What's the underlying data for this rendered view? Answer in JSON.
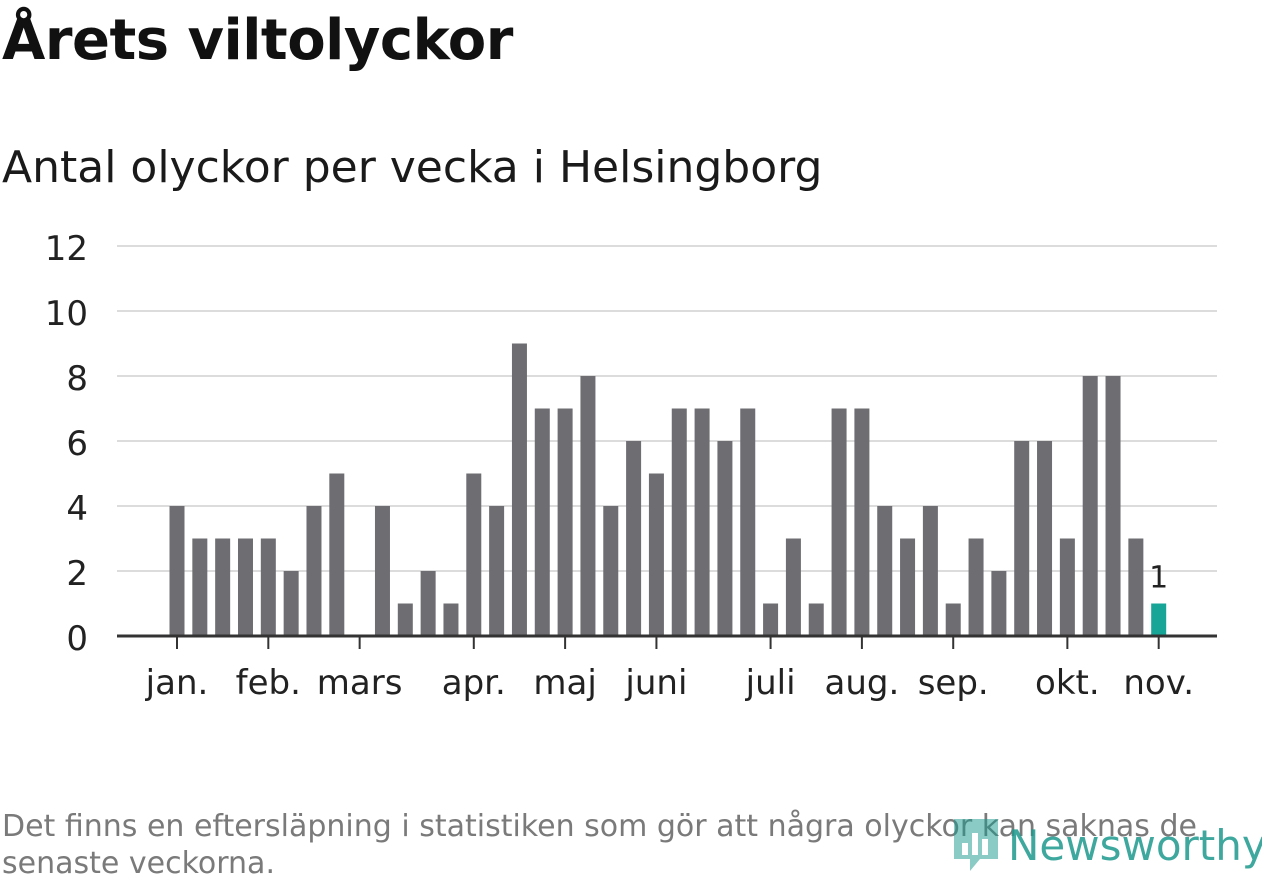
{
  "header": {
    "title": "Årets viltolyckor",
    "subtitle": "Antal olyckor per vecka i Helsingborg"
  },
  "footer": {
    "note": "Det finns en eftersläpning i statistiken som gör att några olyckor kan saknas de senaste veckorna.",
    "brand": "Newsworthy"
  },
  "colors": {
    "bar": "#6e6d72",
    "highlight": "#16a597",
    "grid": "#dcdcdc",
    "axis": "#333333",
    "text": "#222222",
    "brand": "#1d9a8e"
  },
  "chart_data": {
    "type": "bar",
    "title": "Antal olyckor per vecka i Helsingborg",
    "xlabel": "",
    "ylabel": "",
    "ylim": [
      0,
      12
    ],
    "yticks": [
      "0",
      "2",
      "4",
      "6",
      "8",
      "10",
      "12"
    ],
    "values": [
      4,
      3,
      3,
      3,
      3,
      2,
      4,
      5,
      0,
      4,
      1,
      2,
      1,
      5,
      4,
      9,
      7,
      7,
      8,
      4,
      6,
      5,
      7,
      7,
      6,
      7,
      1,
      3,
      1,
      7,
      7,
      4,
      3,
      4,
      1,
      3,
      2,
      6,
      6,
      3,
      8,
      8,
      3,
      1
    ],
    "highlight_index": 43,
    "highlight_label": "1",
    "month_labels": [
      {
        "label": "jan.",
        "week": 0.5
      },
      {
        "label": "feb.",
        "week": 4.5
      },
      {
        "label": "mars",
        "week": 8.5
      },
      {
        "label": "apr.",
        "week": 13.5
      },
      {
        "label": "maj",
        "week": 17.5
      },
      {
        "label": "juni",
        "week": 21.5
      },
      {
        "label": "juli",
        "week": 26.5
      },
      {
        "label": "aug.",
        "week": 30.5
      },
      {
        "label": "sep.",
        "week": 34.5
      },
      {
        "label": "okt.",
        "week": 39.5
      },
      {
        "label": "nov.",
        "week": 43.5
      }
    ],
    "grid": true,
    "legend": "none"
  }
}
